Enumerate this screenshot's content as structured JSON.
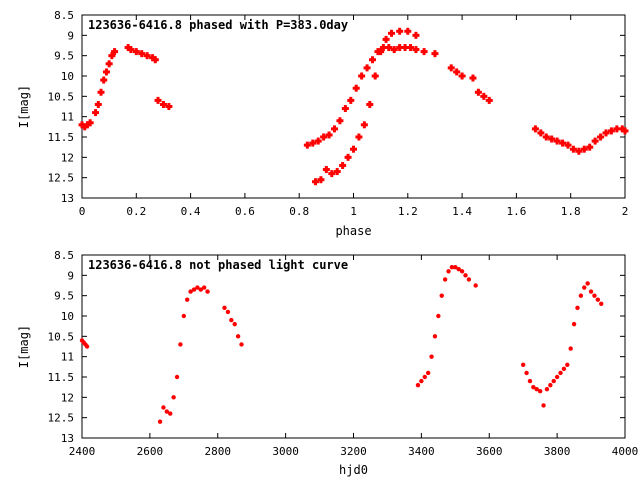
{
  "chart_data": [
    {
      "type": "scatter",
      "title": "123636-6416.8 phased with P=383.0day",
      "xlabel": "phase",
      "ylabel": "I[mag]",
      "xlim": [
        0,
        2
      ],
      "ylim": [
        13,
        8.5
      ],
      "y_inverted": true,
      "grid": false,
      "marker_color": "#ff0000",
      "marker": "plus",
      "xticks": [
        "0",
        "0.2",
        "0.4",
        "0.6",
        "0.8",
        "1",
        "1.2",
        "1.4",
        "1.6",
        "1.8",
        "2"
      ],
      "xtick_values": [
        0,
        0.2,
        0.4,
        0.6,
        0.8,
        1.0,
        1.2,
        1.4,
        1.6,
        1.8,
        2.0
      ],
      "yticks": [
        "8.5",
        "9",
        "9.5",
        "10",
        "10.5",
        "11",
        "11.5",
        "12",
        "12.5",
        "13"
      ],
      "ytick_values": [
        8.5,
        9,
        9.5,
        10,
        10.5,
        11,
        11.5,
        12,
        12.5,
        13
      ],
      "series": [
        {
          "x": [
            0.0,
            0.01,
            0.02,
            0.03,
            0.05,
            0.06,
            0.07,
            0.08,
            0.09,
            0.1,
            0.11,
            0.12,
            0.17,
            0.18,
            0.2,
            0.22,
            0.24,
            0.26,
            0.27,
            0.28,
            0.3,
            0.32,
            0.83,
            0.85,
            0.87,
            0.89,
            0.91,
            0.93,
            0.95,
            0.97,
            0.99,
            1.01,
            1.03,
            1.05,
            1.07,
            1.09,
            1.11,
            1.13,
            1.15,
            1.17,
            1.19,
            1.21,
            1.23,
            1.26,
            1.3,
            0.86,
            0.88,
            0.9,
            0.92,
            0.94,
            0.96,
            0.98,
            1.0,
            1.02,
            1.04,
            1.06,
            1.08,
            1.1,
            1.12,
            1.14,
            1.17,
            1.2,
            1.23,
            1.36,
            1.38,
            1.4,
            1.44,
            1.46,
            1.48,
            1.5,
            1.67,
            1.69,
            1.71,
            1.73,
            1.75,
            1.77,
            1.79,
            1.81,
            1.83,
            1.85,
            1.87,
            1.89,
            1.91,
            1.93,
            1.95,
            1.97,
            1.99,
            2.0
          ],
          "y": [
            11.2,
            11.25,
            11.2,
            11.15,
            10.9,
            10.7,
            10.4,
            10.1,
            9.9,
            9.7,
            9.5,
            9.4,
            9.3,
            9.35,
            9.4,
            9.45,
            9.5,
            9.55,
            9.6,
            10.6,
            10.7,
            10.75,
            11.7,
            11.65,
            11.6,
            11.5,
            11.45,
            11.3,
            11.1,
            10.8,
            10.6,
            10.3,
            10.0,
            9.8,
            9.6,
            9.4,
            9.3,
            9.3,
            9.35,
            9.3,
            9.3,
            9.3,
            9.35,
            9.4,
            9.45,
            12.6,
            12.55,
            12.3,
            12.4,
            12.35,
            12.2,
            12.0,
            11.8,
            11.5,
            11.2,
            10.7,
            10.0,
            9.4,
            9.1,
            8.95,
            8.9,
            8.9,
            9.0,
            9.8,
            9.9,
            10.0,
            10.05,
            10.4,
            10.5,
            10.6,
            11.3,
            11.4,
            11.5,
            11.55,
            11.6,
            11.65,
            11.7,
            11.8,
            11.85,
            11.8,
            11.75,
            11.6,
            11.5,
            11.4,
            11.35,
            11.3,
            11.3,
            11.35
          ]
        }
      ]
    },
    {
      "type": "scatter",
      "title": "123636-6416.8 not phased light curve",
      "xlabel": "hjd0",
      "ylabel": "I[mag]",
      "xlim": [
        2400,
        4000
      ],
      "ylim": [
        13,
        8.5
      ],
      "y_inverted": true,
      "grid": false,
      "marker_color": "#ff0000",
      "marker": "dot",
      "xticks": [
        "2400",
        "2600",
        "2800",
        "3000",
        "3200",
        "3400",
        "3600",
        "3800",
        "4000"
      ],
      "xtick_values": [
        2400,
        2600,
        2800,
        3000,
        3200,
        3400,
        3600,
        3800,
        4000
      ],
      "yticks": [
        "8.5",
        "9",
        "9.5",
        "10",
        "10.5",
        "11",
        "11.5",
        "12",
        "12.5",
        "13"
      ],
      "ytick_values": [
        8.5,
        9,
        9.5,
        10,
        10.5,
        11,
        11.5,
        12,
        12.5,
        13
      ],
      "series": [
        {
          "x": [
            2400,
            2405,
            2410,
            2415,
            2630,
            2640,
            2650,
            2660,
            2670,
            2680,
            2690,
            2700,
            2710,
            2720,
            2730,
            2740,
            2750,
            2760,
            2770,
            2820,
            2830,
            2840,
            2850,
            2860,
            2870,
            3390,
            3400,
            3410,
            3420,
            3430,
            3440,
            3450,
            3460,
            3470,
            3480,
            3490,
            3500,
            3510,
            3520,
            3530,
            3540,
            3560,
            3700,
            3710,
            3720,
            3730,
            3740,
            3750,
            3760,
            3770,
            3780,
            3790,
            3800,
            3810,
            3820,
            3830,
            3840,
            3850,
            3860,
            3870,
            3880,
            3890,
            3900,
            3910,
            3920,
            3930
          ],
          "y": [
            10.6,
            10.65,
            10.7,
            10.75,
            12.6,
            12.25,
            12.35,
            12.4,
            12.0,
            11.5,
            10.7,
            10.0,
            9.6,
            9.4,
            9.35,
            9.3,
            9.35,
            9.3,
            9.4,
            9.8,
            9.9,
            10.1,
            10.2,
            10.5,
            10.7,
            11.7,
            11.6,
            11.5,
            11.4,
            11.0,
            10.5,
            10.0,
            9.5,
            9.1,
            8.9,
            8.8,
            8.8,
            8.85,
            8.9,
            9.0,
            9.1,
            9.25,
            11.2,
            11.4,
            11.6,
            11.75,
            11.8,
            11.85,
            12.2,
            11.8,
            11.7,
            11.6,
            11.5,
            11.4,
            11.3,
            11.2,
            10.8,
            10.2,
            9.8,
            9.5,
            9.3,
            9.2,
            9.4,
            9.5,
            9.6,
            9.7
          ]
        }
      ]
    }
  ]
}
